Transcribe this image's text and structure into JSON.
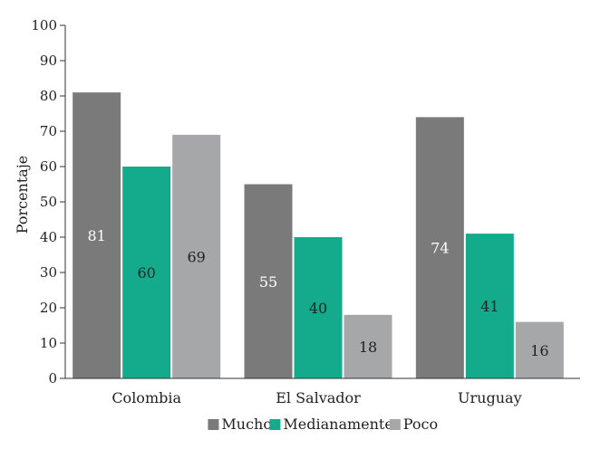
{
  "chart_data": {
    "type": "bar",
    "title": "",
    "xlabel": "",
    "ylabel": "Porcentaje",
    "ylim": [
      0,
      100
    ],
    "yticks": [
      0,
      10,
      20,
      30,
      40,
      50,
      60,
      70,
      80,
      90,
      100
    ],
    "categories": [
      "Colombia",
      "El Salvador",
      "Uruguay"
    ],
    "series": [
      {
        "name": "Mucho",
        "color": "#7a7a7a",
        "label_color": "#ffffff",
        "values": [
          81,
          55,
          74
        ]
      },
      {
        "name": "Medianamente",
        "color": "#13ab8c",
        "label_color": "#222222",
        "values": [
          60,
          40,
          41
        ]
      },
      {
        "name": "Poco",
        "color": "#a6a7a9",
        "label_color": "#222222",
        "values": [
          69,
          18,
          16
        ]
      }
    ],
    "legend_position": "bottom",
    "grid": false
  }
}
